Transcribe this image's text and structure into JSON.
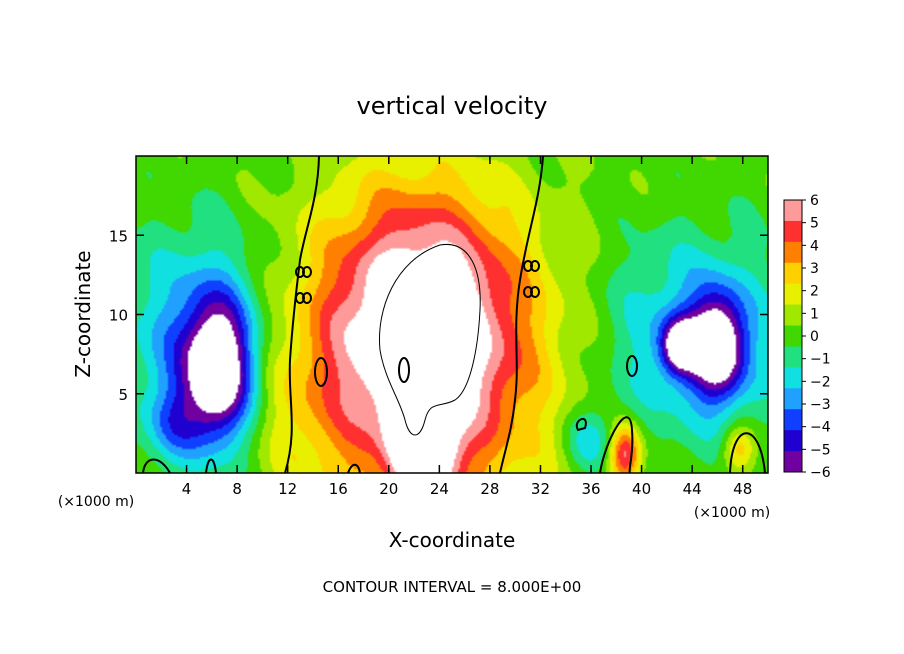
{
  "chart_data": {
    "type": "heatmap",
    "title": "vertical velocity",
    "xlabel": "X-coordinate",
    "ylabel": "Z-coordinate",
    "x_unit": "(×1000 m)",
    "footer": "CONTOUR INTERVAL = 8.000E+00",
    "xlim": [
      0,
      50
    ],
    "ylim": [
      0,
      20
    ],
    "x_ticks": [
      4,
      8,
      12,
      16,
      20,
      24,
      28,
      32,
      36,
      40,
      44,
      48
    ],
    "y_ticks": [
      5,
      10,
      15
    ],
    "colorbar": {
      "ticks": [
        "6",
        "5",
        "4",
        "3",
        "2",
        "1",
        "0",
        "−1",
        "−2",
        "−3",
        "−4",
        "−5",
        "−6"
      ],
      "range": [
        -6,
        6
      ],
      "colors": [
        "#ff9a9a",
        "#ff3030",
        "#ff8000",
        "#ffd000",
        "#e8f000",
        "#a0e800",
        "#40d800",
        "#20e080",
        "#10e0e0",
        "#20a0ff",
        "#1040ff",
        "#2000d0",
        "#7000a0"
      ],
      "above_range_color": "#ffffff"
    },
    "contour_interval": 8.0,
    "features": [
      {
        "x": 22.5,
        "z": 10,
        "w": 5.5,
        "sx": 5.2,
        "sz": 5.6
      },
      {
        "x": 22.5,
        "z": 6,
        "w": 4.0,
        "sx": 7.5,
        "sz": 7.0
      },
      {
        "x": 21.5,
        "z": 1.5,
        "w": 3.5,
        "sx": 1.2,
        "sz": 2.5
      },
      {
        "x": 24.0,
        "z": 1.5,
        "w": 3.5,
        "sx": 1.2,
        "sz": 2.5
      },
      {
        "x": 38.7,
        "z": 1.2,
        "w": 5.5,
        "sx": 0.9,
        "sz": 1.3
      },
      {
        "x": 47.7,
        "z": 1.5,
        "w": 3.0,
        "sx": 0.9,
        "sz": 1.0
      },
      {
        "x": 6.5,
        "z": 6.5,
        "w": -7.0,
        "sx": 1.8,
        "sz": 3.0
      },
      {
        "x": 5.0,
        "z": 8.0,
        "w": -3.5,
        "sx": 4.0,
        "sz": 5.0
      },
      {
        "x": 46.0,
        "z": 8.0,
        "w": -7.0,
        "sx": 1.5,
        "sz": 2.2
      },
      {
        "x": 43.0,
        "z": 8.0,
        "w": -6.0,
        "sx": 1.0,
        "sz": 1.2
      },
      {
        "x": 44.0,
        "z": 8.5,
        "w": -3.0,
        "sx": 5.0,
        "sz": 4.5
      },
      {
        "x": 36.0,
        "z": 2.0,
        "w": -2.5,
        "sx": 1.5,
        "sz": 1.5
      },
      {
        "x": 12.0,
        "z": 4.0,
        "w": 0.8,
        "sx": 2.5,
        "sz": 3.5
      },
      {
        "x": 3.0,
        "z": 3.0,
        "w": -2.0,
        "sx": 1.5,
        "sz": 1.5
      }
    ]
  }
}
